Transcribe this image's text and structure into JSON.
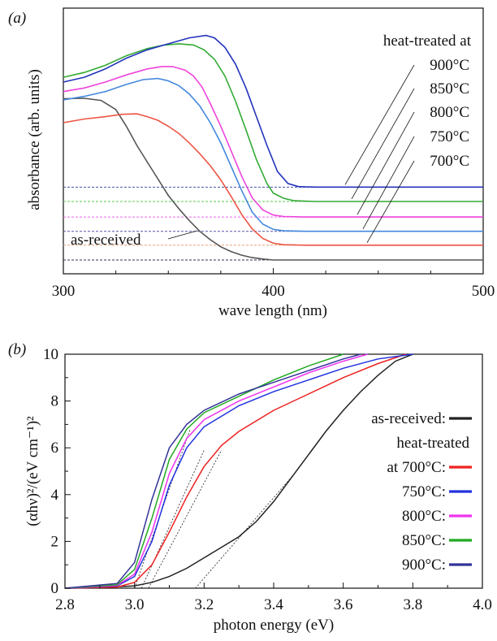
{
  "chart_data": [
    {
      "panel_label": "(a)",
      "type": "line",
      "xlabel": "wave length (nm)",
      "ylabel": "absorbance (arb. units)",
      "xlim": [
        300,
        500
      ],
      "xticks": [
        300,
        400,
        500
      ],
      "ylim": [
        0,
        1
      ],
      "legend_header": "heat-treated at",
      "series": [
        {
          "name": "as-received",
          "color": "#555555",
          "points": [
            [
              300,
              0.675
            ],
            [
              310,
              0.677
            ],
            [
              318,
              0.668
            ],
            [
              325,
              0.63
            ],
            [
              330,
              0.56
            ],
            [
              335,
              0.48
            ],
            [
              340,
              0.41
            ],
            [
              345,
              0.34
            ],
            [
              350,
              0.27
            ],
            [
              355,
              0.215
            ],
            [
              360,
              0.165
            ],
            [
              365,
              0.12
            ],
            [
              370,
              0.085
            ],
            [
              375,
              0.055
            ],
            [
              380,
              0.035
            ],
            [
              385,
              0.02
            ],
            [
              390,
              0.01
            ],
            [
              395,
              0.004
            ],
            [
              400,
              0.0
            ],
            [
              500,
              0.0
            ]
          ],
          "baseline": 0.0,
          "baseline_color": "#33334d"
        },
        {
          "name": "700°C",
          "color": "#ee5544",
          "points": [
            [
              300,
              0.575
            ],
            [
              310,
              0.59
            ],
            [
              320,
              0.6
            ],
            [
              328,
              0.61
            ],
            [
              335,
              0.612
            ],
            [
              340,
              0.6
            ],
            [
              345,
              0.585
            ],
            [
              350,
              0.56
            ],
            [
              355,
              0.53
            ],
            [
              360,
              0.49
            ],
            [
              365,
              0.445
            ],
            [
              370,
              0.395
            ],
            [
              375,
              0.335
            ],
            [
              380,
              0.265
            ],
            [
              385,
              0.19
            ],
            [
              390,
              0.13
            ],
            [
              395,
              0.09
            ],
            [
              400,
              0.07
            ],
            [
              405,
              0.064
            ],
            [
              415,
              0.062
            ],
            [
              500,
              0.062
            ]
          ],
          "baseline": 0.062,
          "baseline_color": "#e8a070"
        },
        {
          "name": "750°C",
          "color": "#4488dd",
          "points": [
            [
              300,
              0.67
            ],
            [
              310,
              0.685
            ],
            [
              320,
              0.705
            ],
            [
              330,
              0.735
            ],
            [
              338,
              0.755
            ],
            [
              345,
              0.76
            ],
            [
              350,
              0.75
            ],
            [
              355,
              0.73
            ],
            [
              360,
              0.695
            ],
            [
              365,
              0.645
            ],
            [
              370,
              0.575
            ],
            [
              375,
              0.49
            ],
            [
              380,
              0.39
            ],
            [
              385,
              0.29
            ],
            [
              390,
              0.2
            ],
            [
              395,
              0.15
            ],
            [
              400,
              0.128
            ],
            [
              405,
              0.122
            ],
            [
              415,
              0.12
            ],
            [
              500,
              0.12
            ]
          ],
          "baseline": 0.12,
          "baseline_color": "#5555aa"
        },
        {
          "name": "800°C",
          "color": "#ee44dd",
          "points": [
            [
              300,
              0.705
            ],
            [
              310,
              0.72
            ],
            [
              320,
              0.745
            ],
            [
              330,
              0.775
            ],
            [
              340,
              0.8
            ],
            [
              347,
              0.81
            ],
            [
              352,
              0.81
            ],
            [
              358,
              0.795
            ],
            [
              362,
              0.77
            ],
            [
              366,
              0.725
            ],
            [
              370,
              0.655
            ],
            [
              375,
              0.56
            ],
            [
              380,
              0.455
            ],
            [
              385,
              0.35
            ],
            [
              390,
              0.26
            ],
            [
              395,
              0.21
            ],
            [
              400,
              0.188
            ],
            [
              405,
              0.182
            ],
            [
              415,
              0.18
            ],
            [
              500,
              0.18
            ]
          ],
          "baseline": 0.18,
          "baseline_color": "#ee66ee"
        },
        {
          "name": "850°C",
          "color": "#33aa33",
          "points": [
            [
              300,
              0.765
            ],
            [
              310,
              0.785
            ],
            [
              320,
              0.815
            ],
            [
              330,
              0.855
            ],
            [
              340,
              0.885
            ],
            [
              348,
              0.9
            ],
            [
              355,
              0.905
            ],
            [
              362,
              0.9
            ],
            [
              367,
              0.88
            ],
            [
              372,
              0.84
            ],
            [
              377,
              0.77
            ],
            [
              382,
              0.665
            ],
            [
              387,
              0.545
            ],
            [
              392,
              0.42
            ],
            [
              397,
              0.32
            ],
            [
              400,
              0.28
            ],
            [
              405,
              0.258
            ],
            [
              410,
              0.248
            ],
            [
              420,
              0.245
            ],
            [
              500,
              0.245
            ]
          ],
          "baseline": 0.245,
          "baseline_color": "#55cc55"
        },
        {
          "name": "900°C",
          "color": "#2233bb",
          "points": [
            [
              300,
              0.745
            ],
            [
              310,
              0.765
            ],
            [
              320,
              0.8
            ],
            [
              330,
              0.845
            ],
            [
              340,
              0.88
            ],
            [
              350,
              0.905
            ],
            [
              360,
              0.93
            ],
            [
              368,
              0.94
            ],
            [
              372,
              0.93
            ],
            [
              377,
              0.89
            ],
            [
              382,
              0.82
            ],
            [
              387,
              0.72
            ],
            [
              392,
              0.6
            ],
            [
              397,
              0.48
            ],
            [
              402,
              0.37
            ],
            [
              407,
              0.32
            ],
            [
              412,
              0.307
            ],
            [
              420,
              0.305
            ],
            [
              500,
              0.305
            ]
          ],
          "baseline": 0.305,
          "baseline_color": "#4455aa"
        }
      ]
    },
    {
      "panel_label": "(b)",
      "type": "line",
      "xlabel": "photon energy (eV)",
      "ylabel": "(αhν)²/(eV cm⁻¹)²",
      "xlim": [
        2.8,
        4.0
      ],
      "ylim": [
        0,
        10
      ],
      "xticks": [
        2.8,
        3.0,
        3.2,
        3.4,
        3.6,
        3.8,
        4.0
      ],
      "xtick_labels": [
        "2.8",
        "3.0",
        "3.2",
        "3.4",
        "3.6",
        "3.8",
        "4.0"
      ],
      "yticks": [
        0,
        2,
        4,
        6,
        8,
        10
      ],
      "legend_header": "heat-treated",
      "series": [
        {
          "name": "as-received:",
          "color": "#222222",
          "points": [
            [
              2.8,
              0
            ],
            [
              2.9,
              0.02
            ],
            [
              3.0,
              0.1
            ],
            [
              3.05,
              0.25
            ],
            [
              3.1,
              0.5
            ],
            [
              3.15,
              0.85
            ],
            [
              3.2,
              1.3
            ],
            [
              3.25,
              1.75
            ],
            [
              3.3,
              2.2
            ],
            [
              3.35,
              2.85
            ],
            [
              3.4,
              3.7
            ],
            [
              3.45,
              4.7
            ],
            [
              3.5,
              5.7
            ],
            [
              3.55,
              6.7
            ],
            [
              3.6,
              7.6
            ],
            [
              3.65,
              8.4
            ],
            [
              3.7,
              9.1
            ],
            [
              3.75,
              9.7
            ],
            [
              3.8,
              10
            ]
          ]
        },
        {
          "name": "at 700°C:",
          "color": "#ee2222",
          "points": [
            [
              2.8,
              0
            ],
            [
              2.95,
              0.05
            ],
            [
              3.0,
              0.25
            ],
            [
              3.05,
              1.0
            ],
            [
              3.1,
              2.4
            ],
            [
              3.15,
              3.9
            ],
            [
              3.2,
              5.2
            ],
            [
              3.25,
              6.1
            ],
            [
              3.3,
              6.7
            ],
            [
              3.4,
              7.6
            ],
            [
              3.5,
              8.3
            ],
            [
              3.6,
              9.0
            ],
            [
              3.7,
              9.6
            ],
            [
              3.78,
              10
            ]
          ]
        },
        {
          "name": "750°C:",
          "color": "#2233dd",
          "points": [
            [
              2.8,
              0
            ],
            [
              2.95,
              0.1
            ],
            [
              3.0,
              0.5
            ],
            [
              3.05,
              2.0
            ],
            [
              3.1,
              4.4
            ],
            [
              3.15,
              6.0
            ],
            [
              3.2,
              6.9
            ],
            [
              3.3,
              7.8
            ],
            [
              3.4,
              8.4
            ],
            [
              3.5,
              8.9
            ],
            [
              3.6,
              9.4
            ],
            [
              3.7,
              9.8
            ],
            [
              3.8,
              10
            ]
          ]
        },
        {
          "name": "800°C:",
          "color": "#ee33ee",
          "points": [
            [
              2.8,
              0
            ],
            [
              2.95,
              0.12
            ],
            [
              3.0,
              0.6
            ],
            [
              3.05,
              2.4
            ],
            [
              3.1,
              4.9
            ],
            [
              3.15,
              6.4
            ],
            [
              3.2,
              7.2
            ],
            [
              3.3,
              8.0
            ],
            [
              3.4,
              8.6
            ],
            [
              3.5,
              9.2
            ],
            [
              3.6,
              9.7
            ],
            [
              3.67,
              10
            ]
          ]
        },
        {
          "name": "850°C:",
          "color": "#22aa22",
          "points": [
            [
              2.8,
              0
            ],
            [
              2.95,
              0.15
            ],
            [
              3.0,
              0.8
            ],
            [
              3.05,
              3.0
            ],
            [
              3.1,
              5.5
            ],
            [
              3.15,
              6.8
            ],
            [
              3.2,
              7.5
            ],
            [
              3.3,
              8.2
            ],
            [
              3.4,
              8.9
            ],
            [
              3.5,
              9.5
            ],
            [
              3.6,
              10
            ]
          ]
        },
        {
          "name": "900°C:",
          "color": "#333399",
          "points": [
            [
              2.8,
              0
            ],
            [
              2.95,
              0.2
            ],
            [
              3.0,
              1.1
            ],
            [
              3.05,
              3.8
            ],
            [
              3.1,
              6.0
            ],
            [
              3.15,
              7.0
            ],
            [
              3.2,
              7.6
            ],
            [
              3.3,
              8.3
            ],
            [
              3.4,
              8.8
            ],
            [
              3.5,
              9.3
            ],
            [
              3.6,
              9.8
            ],
            [
              3.65,
              10
            ]
          ]
        }
      ],
      "tangent_lines": [
        {
          "from": [
            3.175,
            0
          ],
          "to": [
            3.46,
            4.9
          ]
        },
        {
          "from": [
            3.04,
            0
          ],
          "to": [
            3.25,
            5.9
          ]
        },
        {
          "from": [
            3.02,
            0
          ],
          "to": [
            3.2,
            5.9
          ]
        },
        {
          "from": [
            3.0,
            0
          ],
          "to": [
            3.16,
            6.8
          ]
        }
      ]
    }
  ]
}
